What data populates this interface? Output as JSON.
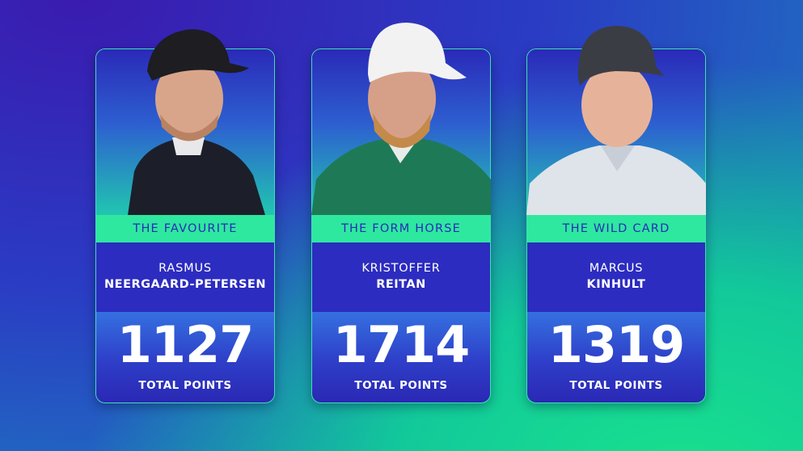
{
  "cards": [
    {
      "label": "THE FAVOURITE",
      "first_name": "RASMUS",
      "last_name": "NEERGAARD-PETERSEN",
      "points": 1127,
      "points_label": "TOTAL POINTS"
    },
    {
      "label": "THE FORM HORSE",
      "first_name": "KRISTOFFER",
      "last_name": "REITAN",
      "points": 1714,
      "points_label": "TOTAL POINTS"
    },
    {
      "label": "THE WILD CARD",
      "first_name": "MARCUS",
      "last_name": "KINHULT",
      "points": 1319,
      "points_label": "TOTAL POINTS"
    }
  ]
}
